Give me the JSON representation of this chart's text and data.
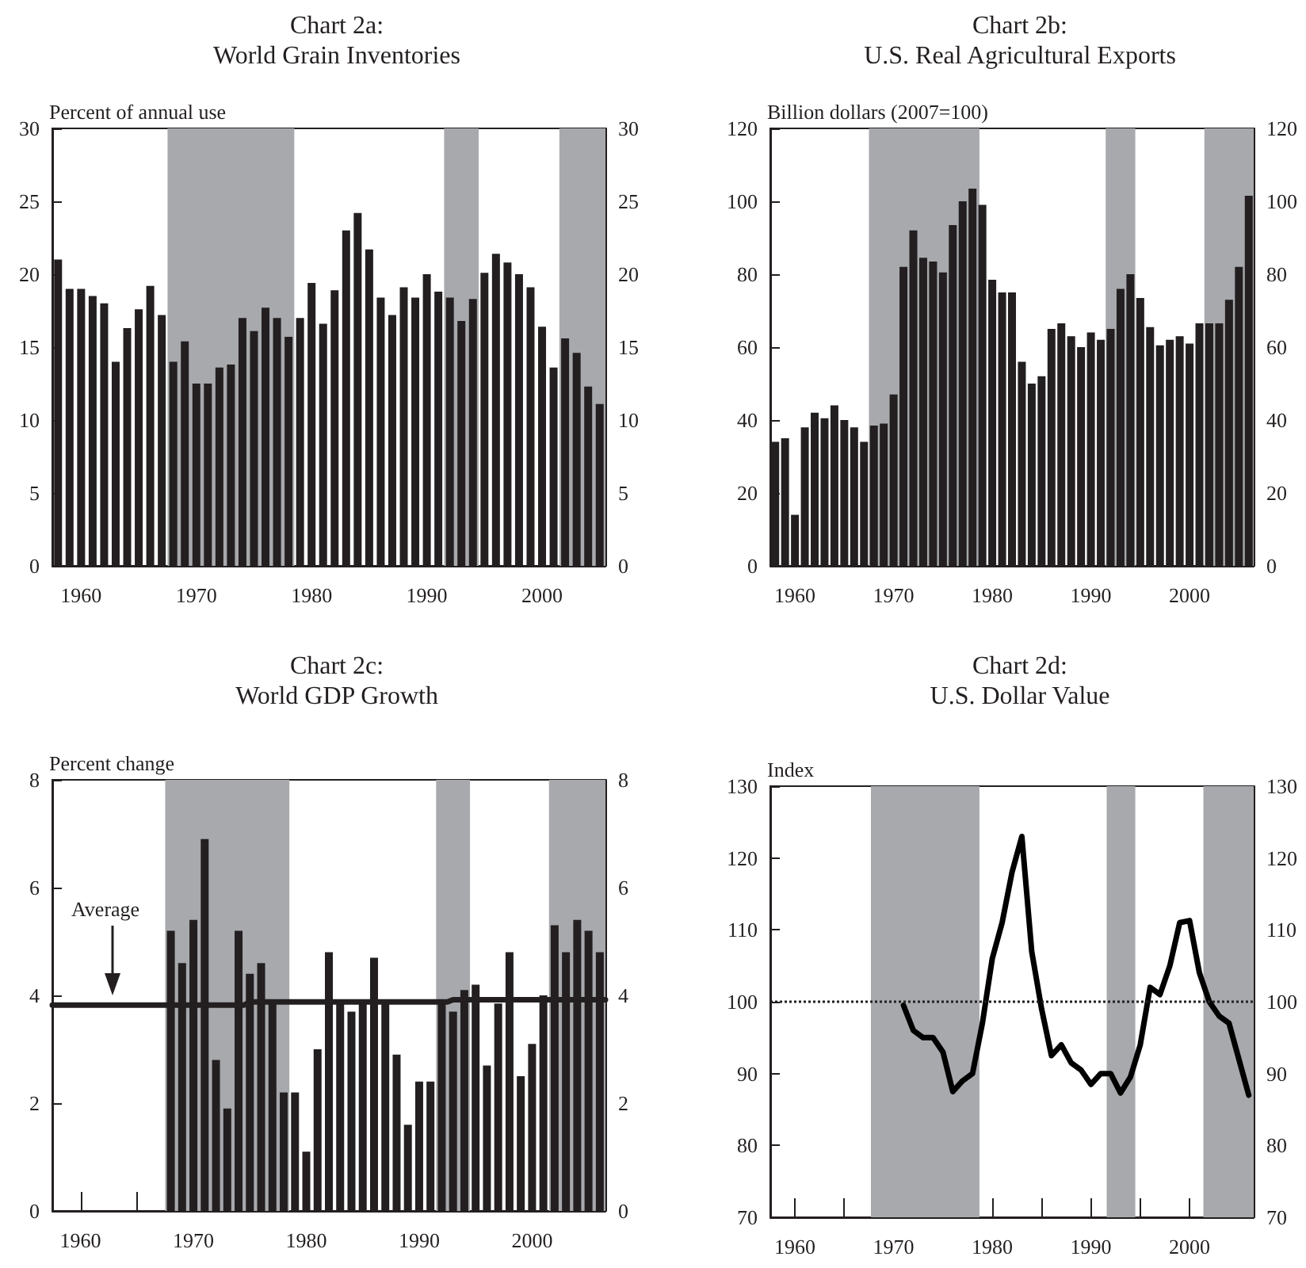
{
  "chart_data": [
    {
      "type": "bar",
      "title": "Chart 2a:",
      "subtitle": "World Grain Inventories",
      "ylabel": "Percent of annual use",
      "color": "#231f20",
      "x": [
        1958,
        1959,
        1960,
        1961,
        1962,
        1963,
        1964,
        1965,
        1966,
        1967,
        1968,
        1969,
        1970,
        1971,
        1972,
        1973,
        1974,
        1975,
        1976,
        1977,
        1978,
        1979,
        1980,
        1981,
        1982,
        1983,
        1984,
        1985,
        1986,
        1987,
        1988,
        1989,
        1990,
        1991,
        1992,
        1993,
        1994,
        1995,
        1996,
        1997,
        1998,
        1999,
        2000,
        2001,
        2002,
        2003,
        2004,
        2005
      ],
      "values": [
        21,
        19,
        19,
        18.5,
        18,
        14,
        16.3,
        17.6,
        19.2,
        17.2,
        14,
        15.4,
        12.5,
        12.5,
        13.6,
        13.8,
        17,
        16.1,
        17.7,
        17,
        15.7,
        17,
        19.4,
        16.6,
        18.9,
        23,
        24.2,
        21.7,
        18.4,
        17.2,
        19.1,
        18.4,
        20,
        18.8,
        18.4,
        16.8,
        18.3,
        20.1,
        21.4,
        20.8,
        20,
        19.1,
        16.4,
        13.6,
        15.6,
        14.6,
        12.3,
        11.1
      ],
      "xlim": [
        1957.5,
        2005.5
      ],
      "xticks": [
        1960,
        {
          "value": 1965,
          "label": null
        },
        1970,
        {
          "value": 1975,
          "label": null
        },
        1980,
        {
          "value": 1985,
          "label": null
        },
        1990,
        {
          "value": 1995,
          "label": null
        },
        2000,
        {
          "value": 2005,
          "label": null
        }
      ],
      "ylim": [
        0,
        30
      ],
      "yticks": [
        0,
        5,
        10,
        15,
        20,
        25,
        30
      ],
      "y2lim": [
        0,
        30
      ],
      "y2ticks": [
        0,
        5,
        10,
        15,
        20,
        25,
        30
      ],
      "bands": [
        {
          "axis": "x",
          "from": 1967.5,
          "to": 1978.5,
          "color": "#a7a9ac"
        },
        {
          "axis": "x",
          "from": 1991.5,
          "to": 1994.5,
          "color": "#a7a9ac"
        },
        {
          "axis": "x",
          "from": 2001.5,
          "to": 2005.5,
          "color": "#a7a9ac"
        }
      ]
    },
    {
      "type": "bar",
      "title": "Chart 2b:",
      "subtitle": "U.S. Real Agricultural Exports",
      "ylabel": "Billion dollars (2007=100)",
      "color": "#231f20",
      "x": [
        1958,
        1959,
        1960,
        1961,
        1962,
        1963,
        1964,
        1965,
        1966,
        1967,
        1968,
        1969,
        1970,
        1971,
        1972,
        1973,
        1974,
        1975,
        1976,
        1977,
        1978,
        1979,
        1980,
        1981,
        1982,
        1983,
        1984,
        1985,
        1986,
        1987,
        1988,
        1989,
        1990,
        1991,
        1992,
        1993,
        1994,
        1995,
        1996,
        1997,
        1998,
        1999,
        2000,
        2001,
        2002,
        2003,
        2004,
        2005,
        2006
      ],
      "values": [
        34,
        35,
        14,
        38,
        42,
        40.5,
        44,
        40,
        38,
        34,
        38.5,
        39,
        47,
        82,
        92,
        84.5,
        83.5,
        80.5,
        93.5,
        100,
        103.5,
        99,
        78.5,
        75,
        75,
        56,
        50,
        52,
        65,
        66.5,
        63,
        60,
        64,
        62,
        65,
        76,
        80,
        73.5,
        65.5,
        60.5,
        62,
        63,
        61,
        66.5,
        66.5,
        66.5,
        73,
        82,
        101.5
      ],
      "xlim": [
        1957.5,
        2006.5
      ],
      "xticks": [
        1960,
        {
          "value": 1965,
          "label": null
        },
        1970,
        {
          "value": 1975,
          "label": null
        },
        1980,
        {
          "value": 1985,
          "label": null
        },
        1990,
        {
          "value": 1995,
          "label": null
        },
        2000,
        {
          "value": 2005,
          "label": null
        }
      ],
      "ylim": [
        0,
        120
      ],
      "yticks": [
        0,
        20,
        40,
        60,
        80,
        100,
        120
      ],
      "y2lim": [
        0,
        120
      ],
      "y2ticks": [
        0,
        20,
        40,
        60,
        80,
        100,
        120
      ],
      "bands": [
        {
          "axis": "x",
          "from": 1967.5,
          "to": 1978.7,
          "color": "#a7a9ac"
        },
        {
          "axis": "x",
          "from": 1991.5,
          "to": 1994.5,
          "color": "#a7a9ac"
        },
        {
          "axis": "x",
          "from": 2001.5,
          "to": 2006.5,
          "color": "#a7a9ac"
        }
      ]
    },
    {
      "type": "bar",
      "title": "Chart 2c:",
      "subtitle": "World GDP Growth",
      "ylabel": "Percent change",
      "series": [
        {
          "color": "#231f20",
          "x": [
            1968,
            1969,
            1970,
            1971,
            1972,
            1973,
            1974,
            1975,
            1976,
            1977,
            1978,
            1979,
            1980,
            1981,
            1982,
            1983,
            1984,
            1985,
            1986,
            1987,
            1988,
            1989,
            1990,
            1991,
            1992,
            1993,
            1994,
            1995,
            1996,
            1997,
            1998,
            1999,
            2000,
            2001,
            2002,
            2003,
            2004,
            2005,
            2006
          ],
          "values": [
            5.2,
            4.6,
            5.4,
            6.9,
            2.8,
            1.9,
            5.2,
            4.4,
            4.6,
            3.9,
            2.2,
            2.2,
            1.1,
            3.0,
            4.8,
            3.9,
            3.7,
            3.9,
            4.7,
            3.9,
            2.9,
            1.6,
            2.4,
            2.4,
            3.9,
            3.7,
            4.1,
            4.2,
            2.7,
            3.85,
            4.8,
            2.5,
            3.1,
            4.0,
            5.3,
            4.8,
            5.4,
            5.2,
            4.8
          ]
        },
        {
          "type": "line",
          "color": "#231f20",
          "x": [
            1957.5,
            1974.5,
            1975,
            1992.5,
            1993,
            2006.5
          ],
          "values": [
            3.82,
            3.82,
            3.88,
            3.88,
            3.92,
            3.92
          ]
        }
      ],
      "annotations": [
        "Average"
      ],
      "xlim": [
        1957.5,
        2006.5
      ],
      "xticks": [
        1960,
        {
          "value": 1965,
          "label": null
        },
        1970,
        {
          "value": 1975,
          "label": null
        },
        1980,
        {
          "value": 1985,
          "label": null
        },
        1990,
        {
          "value": 1995,
          "label": null
        },
        2000,
        {
          "value": 2005,
          "label": null
        }
      ],
      "ylim": [
        0,
        8
      ],
      "yticks": [
        0,
        2,
        4,
        6,
        8
      ],
      "y2lim": [
        0,
        8
      ],
      "y2ticks": [
        0,
        2,
        4,
        6,
        8
      ],
      "marker": "none",
      "line_style": "solid",
      "bands": [
        {
          "axis": "x",
          "from": 1967.5,
          "to": 1978.5,
          "color": "#a7a9ac"
        },
        {
          "axis": "x",
          "from": 1991.5,
          "to": 1994.5,
          "color": "#a7a9ac"
        },
        {
          "axis": "x",
          "from": 2001.5,
          "to": 2006.5,
          "color": "#a7a9ac"
        }
      ]
    },
    {
      "type": "line",
      "title": "Chart 2d:",
      "subtitle": "U.S. Dollar Value",
      "ylabel": "Index",
      "color": "#000000",
      "marker": "none",
      "line_style": "solid",
      "x": [
        1971,
        1972,
        1973,
        1974,
        1975,
        1976,
        1977,
        1978,
        1979,
        1980,
        1981,
        1982,
        1983,
        1984,
        1985,
        1986,
        1987,
        1988,
        1989,
        1990,
        1991,
        1992,
        1993,
        1994,
        1995,
        1996,
        1997,
        1998,
        1999,
        2000,
        2001,
        2002,
        2003,
        2004,
        2005,
        2006
      ],
      "values": [
        99.5,
        96,
        95,
        95,
        93,
        87.5,
        89,
        90,
        97,
        106,
        111,
        118,
        123,
        107,
        99,
        92.5,
        94,
        91.5,
        90.5,
        88.5,
        90,
        90,
        87.3,
        89.5,
        94,
        102,
        101,
        105,
        111,
        111.3,
        104,
        100,
        98,
        97,
        92,
        87
      ],
      "xlim": [
        1957.5,
        2006.5
      ],
      "xticks": [
        1960,
        {
          "value": 1965,
          "label": null
        },
        1970,
        {
          "value": 1975,
          "label": null
        },
        1980,
        {
          "value": 1985,
          "label": null
        },
        1990,
        {
          "value": 1995,
          "label": null
        },
        2000,
        {
          "value": 2005,
          "label": null
        }
      ],
      "ylim": [
        70,
        130
      ],
      "yticks": [
        70,
        80,
        90,
        100,
        110,
        120,
        130
      ],
      "y2lim": [
        70,
        130
      ],
      "y2ticks": [
        70,
        80,
        90,
        100,
        110,
        120,
        130
      ],
      "ref_lines": [
        {
          "axis": "y",
          "value": 100,
          "color": "#231f20",
          "line_style": "dotted"
        }
      ],
      "bands": [
        {
          "axis": "x",
          "from": 1967.7,
          "to": 1978.7,
          "color": "#a7a9ac"
        },
        {
          "axis": "x",
          "from": 1991.6,
          "to": 1994.5,
          "color": "#a7a9ac"
        },
        {
          "axis": "x",
          "from": 2001.4,
          "to": 2006.5,
          "color": "#a7a9ac"
        }
      ]
    }
  ]
}
